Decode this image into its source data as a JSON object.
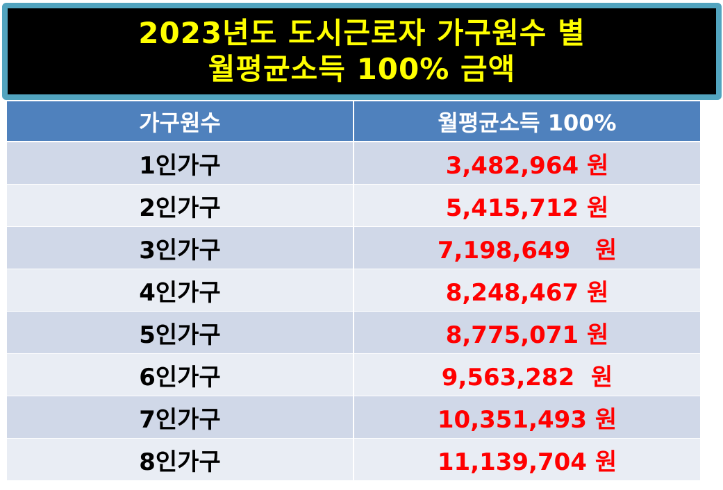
{
  "title": {
    "line1": "2023년도 도시근로자 가구원수 별",
    "line2": "월평균소득 100% 금액"
  },
  "table": {
    "headers": [
      "가구원수",
      "월평균소득 100%"
    ],
    "rows": [
      {
        "household": "1인가구",
        "amount": "3,482,964 원"
      },
      {
        "household": "2인가구",
        "amount": "5,415,712 원"
      },
      {
        "household": "3인가구",
        "amount": "7,198,649   원"
      },
      {
        "household": "4인가구",
        "amount": "8,248,467 원"
      },
      {
        "household": "5인가구",
        "amount": "8,775,071 원"
      },
      {
        "household": "6인가구",
        "amount": "9,563,282  원"
      },
      {
        "household": "7인가구",
        "amount": "10,351,493 원"
      },
      {
        "household": "8인가구",
        "amount": "11,139,704 원"
      }
    ]
  },
  "colors": {
    "title_text": "#ffff00",
    "title_bg": "#000000",
    "title_border": "#52a4bf",
    "header_bg": "#4f81bd",
    "row_dark": "#d0d8e8",
    "row_light": "#e9edf4",
    "amount_text": "#ff0000"
  }
}
